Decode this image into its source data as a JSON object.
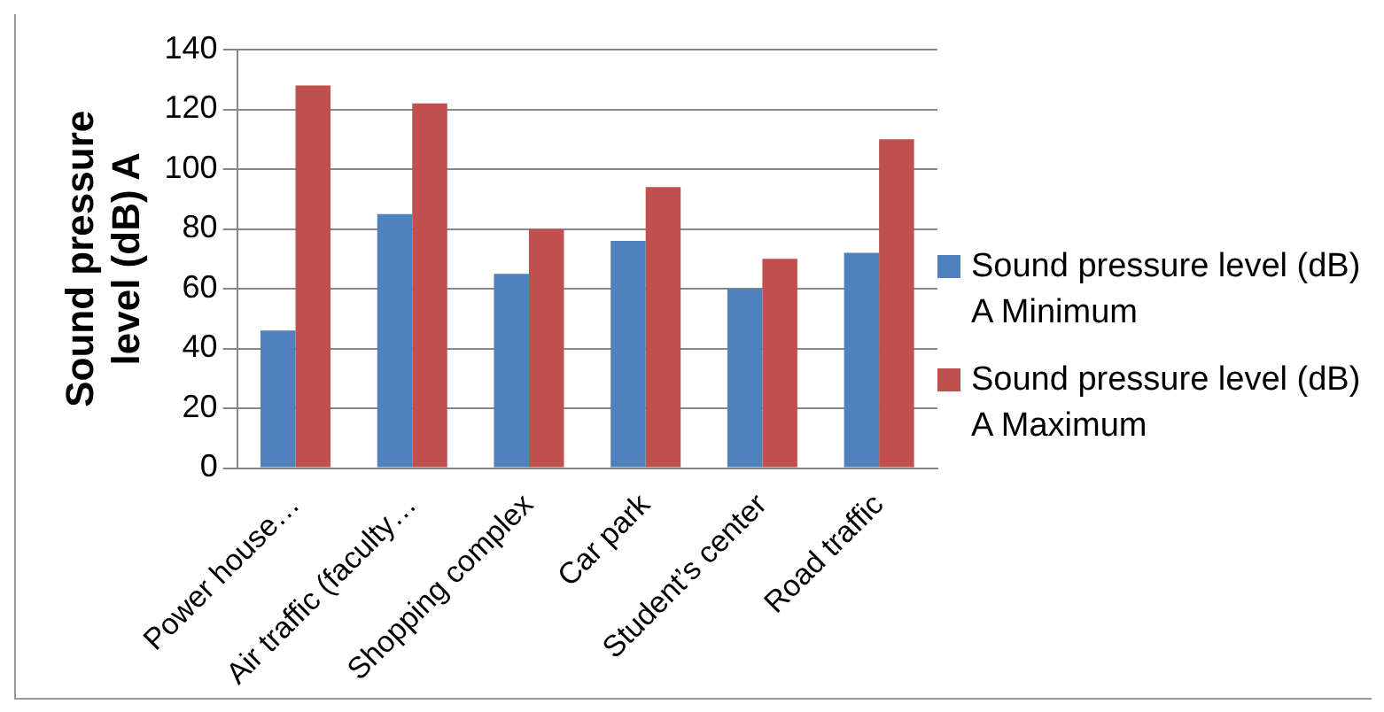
{
  "chart_data": {
    "type": "bar",
    "ylabel": "Sound pressure level (dB) A",
    "categories": [
      "Power house…",
      "Air traffic (faculty…",
      "Shopping complex",
      "Car park",
      "Student’s center",
      "Road traffic"
    ],
    "series": [
      {
        "name": "Sound pressure level (dB) A Minimum",
        "color": "#4f81bd",
        "values": [
          46,
          85,
          65,
          76,
          60,
          72
        ]
      },
      {
        "name": "Sound pressure level (dB) A Maximum",
        "color": "#c0504d",
        "values": [
          128,
          122,
          80,
          94,
          70,
          110
        ]
      }
    ],
    "ylim": [
      0,
      140
    ],
    "yticks": [
      0,
      20,
      40,
      60,
      80,
      100,
      120,
      140
    ],
    "grid": "y",
    "legend": "right"
  }
}
